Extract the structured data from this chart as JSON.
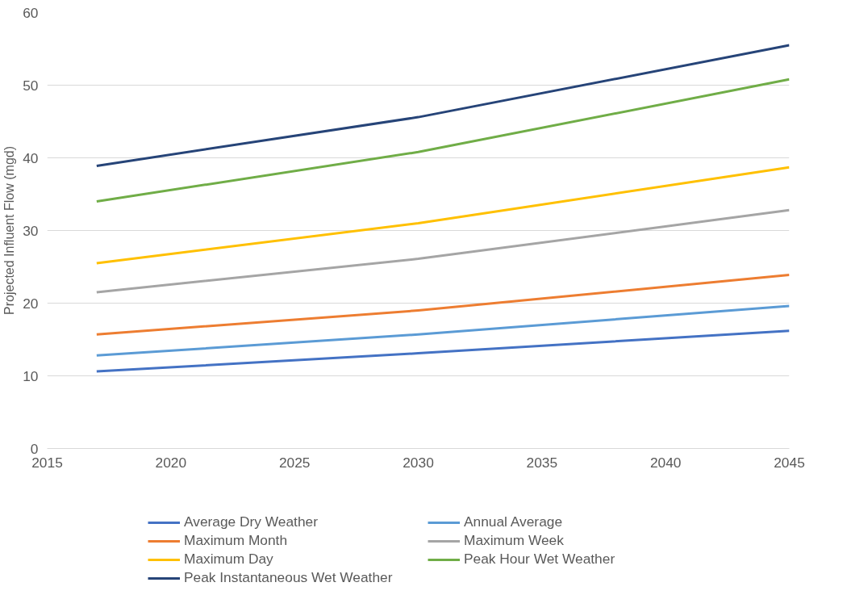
{
  "chart_data": {
    "type": "line",
    "ylabel": "Projected Influent Flow (mgd)",
    "x": [
      2017,
      2030,
      2045
    ],
    "xlim": [
      2015,
      2045
    ],
    "xticks": [
      2015,
      2020,
      2025,
      2030,
      2035,
      2040,
      2045
    ],
    "ylim": [
      0,
      60
    ],
    "yticks": [
      0,
      10,
      20,
      30,
      40,
      50,
      60
    ],
    "grid": "y",
    "legend": "bottom",
    "marker": "none",
    "line_style": "solid",
    "series": [
      {
        "name": "Average Dry Weather",
        "color": "#4472c4",
        "values": [
          10.6,
          13.1,
          16.2
        ]
      },
      {
        "name": "Annual Average",
        "color": "#5b9bd5",
        "values": [
          12.8,
          15.7,
          19.6
        ]
      },
      {
        "name": "Maximum Month",
        "color": "#ed7d31",
        "values": [
          15.7,
          19.0,
          23.9
        ]
      },
      {
        "name": "Maximum Week",
        "color": "#a5a5a5",
        "values": [
          21.5,
          26.1,
          32.8
        ]
      },
      {
        "name": "Maximum Day",
        "color": "#ffc000",
        "values": [
          25.5,
          31.0,
          38.7
        ]
      },
      {
        "name": "Peak Hour Wet Weather",
        "color": "#70ad47",
        "values": [
          34.0,
          40.8,
          50.8
        ]
      },
      {
        "name": "Peak Instantaneous Wet Weather",
        "color": "#264478",
        "values": [
          38.9,
          45.6,
          55.5
        ]
      }
    ]
  }
}
